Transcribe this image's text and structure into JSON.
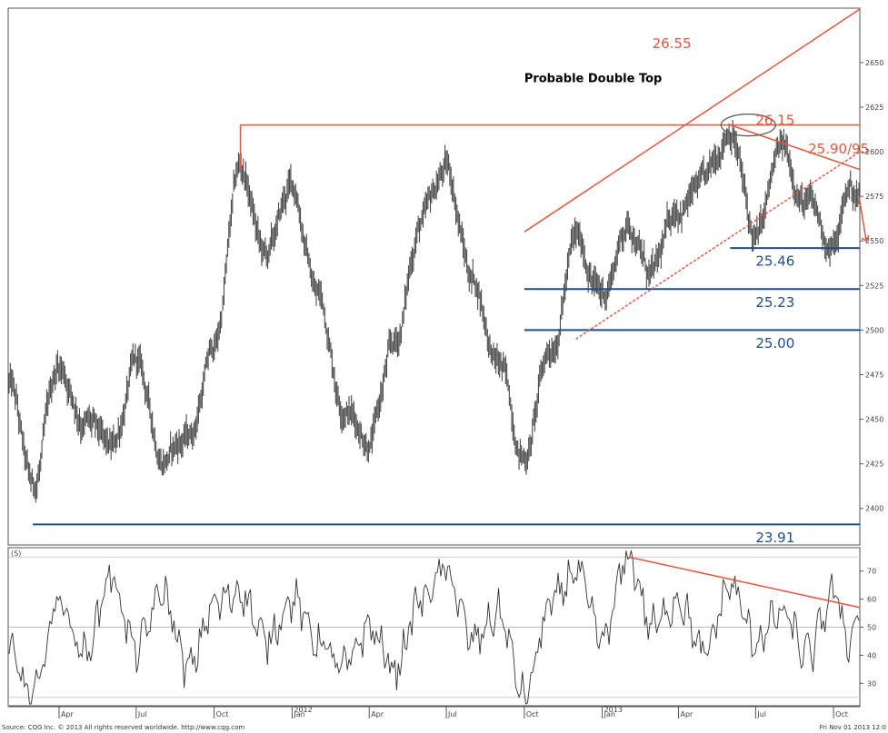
{
  "chart_data": [
    {
      "type": "line",
      "panel": "price",
      "x_axis": {
        "start": "2011-02",
        "end": "2013-11",
        "tick_labels": [
          "Apr",
          "Jul",
          "Oct",
          "2012",
          "Jan",
          "Apr",
          "Jul",
          "Oct",
          "2013",
          "Jan",
          "Apr",
          "Jul",
          "Oct"
        ]
      },
      "ylim": [
        23.8,
        26.8
      ],
      "y_tick_labels": [
        "2400",
        "2425",
        "2450",
        "2475",
        "2500",
        "2525",
        "2550",
        "2575",
        "2600",
        "2625",
        "2650"
      ],
      "y_tick_values": [
        24.0,
        24.25,
        24.5,
        24.75,
        25.0,
        25.25,
        25.5,
        25.75,
        26.0,
        26.25,
        26.5
      ],
      "price_anchors": [
        {
          "x": "2011-02",
          "y": 24.7
        },
        {
          "x": "2011-03",
          "y": 24.1
        },
        {
          "x": "2011-04",
          "y": 24.8
        },
        {
          "x": "2011-05",
          "y": 24.5
        },
        {
          "x": "2011-06",
          "y": 24.3
        },
        {
          "x": "2011-07",
          "y": 24.8
        },
        {
          "x": "2011-08",
          "y": 24.3
        },
        {
          "x": "2011-09",
          "y": 24.4
        },
        {
          "x": "2011-10",
          "y": 24.9
        },
        {
          "x": "2011-11",
          "y": 25.9
        },
        {
          "x": "2011-12",
          "y": 25.4
        },
        {
          "x": "2012-01",
          "y": 25.8
        },
        {
          "x": "2012-02",
          "y": 25.2
        },
        {
          "x": "2012-03",
          "y": 24.6
        },
        {
          "x": "2012-04",
          "y": 24.4
        },
        {
          "x": "2012-05",
          "y": 24.9
        },
        {
          "x": "2012-06",
          "y": 25.6
        },
        {
          "x": "2012-07",
          "y": 25.9
        },
        {
          "x": "2012-08",
          "y": 25.3
        },
        {
          "x": "2012-09",
          "y": 24.8
        },
        {
          "x": "2012-10",
          "y": 24.3
        },
        {
          "x": "2012-11",
          "y": 24.9
        },
        {
          "x": "2012-12",
          "y": 25.5
        },
        {
          "x": "2013-01",
          "y": 25.2
        },
        {
          "x": "2013-02",
          "y": 25.6
        },
        {
          "x": "2013-03",
          "y": 25.3
        },
        {
          "x": "2013-04",
          "y": 25.7
        },
        {
          "x": "2013-05",
          "y": 25.8
        },
        {
          "x": "2013-06",
          "y": 26.15
        },
        {
          "x": "2013-07",
          "y": 25.5
        },
        {
          "x": "2013-08",
          "y": 26.0
        },
        {
          "x": "2013-09",
          "y": 25.7
        },
        {
          "x": "2013-10",
          "y": 25.46
        },
        {
          "x": "2013-10-20",
          "y": 25.8
        },
        {
          "x": "2013-10-31",
          "y": 25.75
        }
      ],
      "horizontal_levels": [
        {
          "label": "25.46",
          "y": 25.46,
          "x_start": "2013-06",
          "color": "#1f4e8c"
        },
        {
          "label": "25.23",
          "y": 25.23,
          "x_start": "2012-10",
          "color": "#1f4e8c"
        },
        {
          "label": "25.00",
          "y": 25.0,
          "x_start": "2012-10",
          "color": "#1f4e8c"
        },
        {
          "label": "23.91",
          "y": 23.91,
          "x_start": "2011-03",
          "color": "#1f4e8c"
        }
      ],
      "resistance_levels": [
        {
          "label": "26.15",
          "y": 26.15,
          "x_start": "2011-11",
          "color": "#e8553a"
        }
      ],
      "trend_lines": [
        {
          "name": "channel-upper",
          "x1": "2012-10",
          "y1": 25.55,
          "x2": "2013-11",
          "y2": 26.8,
          "color": "#e8553a",
          "dashed": false
        },
        {
          "name": "channel-lower",
          "x1": "2012-12",
          "y1": 24.95,
          "x2": "2013-11",
          "y2": 26.0,
          "color": "#e8553a",
          "dashed": true
        },
        {
          "name": "downtrend-from-top",
          "x1": "2013-06",
          "y1": 26.15,
          "x2": "2013-11",
          "y2": 25.9,
          "color": "#e8553a",
          "dashed": false
        }
      ],
      "annotations": [
        {
          "text": "26.55",
          "x": "2013-03",
          "y": 26.58,
          "color": "#e8553a"
        },
        {
          "text": "26.15",
          "x": "2013-07",
          "y": 26.15,
          "color": "#e8553a"
        },
        {
          "text": "25.90/95",
          "x": "2013-09",
          "y": 25.99,
          "color": "#e8553a"
        },
        {
          "text": "25.46",
          "x": "2013-07",
          "y": 25.36,
          "color": "#1f4e8c"
        },
        {
          "text": "25.23",
          "x": "2013-07",
          "y": 25.13,
          "color": "#1f4e8c"
        },
        {
          "text": "25.00",
          "x": "2013-07",
          "y": 24.9,
          "color": "#1f4e8c"
        },
        {
          "text": "23.91",
          "x": "2013-07",
          "y": 23.81,
          "color": "#1f4e8c"
        },
        {
          "text": "Probable Double Top",
          "x": "2012-10",
          "y": 26.39,
          "color": "#000000"
        }
      ]
    },
    {
      "type": "line",
      "panel": "oscillator",
      "panel_label": "(S)",
      "ylim": [
        22,
        78
      ],
      "y_tick_labels": [
        "30",
        "40",
        "50",
        "60",
        "70"
      ],
      "y_tick_values": [
        30,
        40,
        50,
        60,
        70
      ],
      "reference_levels": [
        25,
        50,
        75
      ],
      "anchors": [
        {
          "x": "2011-02",
          "y": 40
        },
        {
          "x": "2011-03",
          "y": 25
        },
        {
          "x": "2011-04",
          "y": 60
        },
        {
          "x": "2011-05",
          "y": 40
        },
        {
          "x": "2011-06",
          "y": 68
        },
        {
          "x": "2011-07",
          "y": 42
        },
        {
          "x": "2011-08",
          "y": 62
        },
        {
          "x": "2011-09",
          "y": 35
        },
        {
          "x": "2011-10",
          "y": 58
        },
        {
          "x": "2011-11",
          "y": 63
        },
        {
          "x": "2011-12",
          "y": 45
        },
        {
          "x": "2012-01",
          "y": 60
        },
        {
          "x": "2012-02",
          "y": 45
        },
        {
          "x": "2012-03",
          "y": 35
        },
        {
          "x": "2012-04",
          "y": 50
        },
        {
          "x": "2012-05",
          "y": 35
        },
        {
          "x": "2012-06",
          "y": 60
        },
        {
          "x": "2012-07",
          "y": 70
        },
        {
          "x": "2012-08",
          "y": 45
        },
        {
          "x": "2012-09",
          "y": 55
        },
        {
          "x": "2012-10",
          "y": 25
        },
        {
          "x": "2012-11",
          "y": 58
        },
        {
          "x": "2012-12",
          "y": 70
        },
        {
          "x": "2013-01",
          "y": 45
        },
        {
          "x": "2013-02",
          "y": 75
        },
        {
          "x": "2013-03",
          "y": 50
        },
        {
          "x": "2013-04",
          "y": 60
        },
        {
          "x": "2013-05",
          "y": 40
        },
        {
          "x": "2013-06",
          "y": 65
        },
        {
          "x": "2013-07",
          "y": 45
        },
        {
          "x": "2013-08",
          "y": 55
        },
        {
          "x": "2013-09",
          "y": 40
        },
        {
          "x": "2013-10",
          "y": 62
        },
        {
          "x": "2013-10-20",
          "y": 45
        },
        {
          "x": "2013-10-31",
          "y": 55
        }
      ],
      "trend_lines": [
        {
          "name": "osc-downtrend",
          "x1": "2013-02",
          "y1": 75,
          "x2": "2013-11",
          "y2": 57,
          "color": "#e8553a",
          "dashed": false
        }
      ]
    }
  ],
  "footer": {
    "source": "Source: CQG Inc. © 2013 All rights reserved worldwide. http://www.cqg.com",
    "timestamp": "Fri Nov 01 2013 12:0"
  }
}
